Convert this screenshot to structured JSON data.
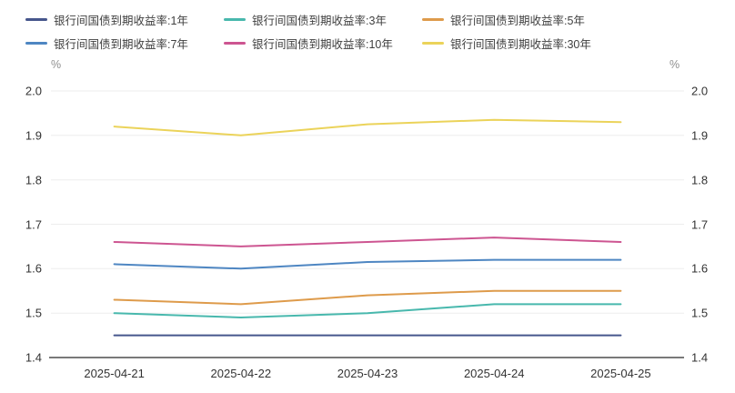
{
  "chart_data": {
    "type": "line",
    "title": "",
    "x": [
      "2025-04-21",
      "2025-04-22",
      "2025-04-23",
      "2025-04-24",
      "2025-04-25"
    ],
    "series": [
      {
        "name": "银行间国债到期收益率:1年",
        "color": "#46568c",
        "values": [
          1.45,
          1.45,
          1.45,
          1.45,
          1.45
        ]
      },
      {
        "name": "银行间国债到期收益率:3年",
        "color": "#48b8ad",
        "values": [
          1.5,
          1.49,
          1.5,
          1.52,
          1.52
        ]
      },
      {
        "name": "银行间国债到期收益率:5年",
        "color": "#de9b4b",
        "values": [
          1.53,
          1.52,
          1.54,
          1.55,
          1.55
        ]
      },
      {
        "name": "银行间国债到期收益率:7年",
        "color": "#4e86c2",
        "values": [
          1.61,
          1.6,
          1.615,
          1.62,
          1.62
        ]
      },
      {
        "name": "银行间国债到期收益率:10年",
        "color": "#cd5591",
        "values": [
          1.66,
          1.65,
          1.66,
          1.67,
          1.66
        ]
      },
      {
        "name": "银行间国债到期收益率:30年",
        "color": "#ebd35a",
        "values": [
          1.92,
          1.9,
          1.925,
          1.935,
          1.93
        ]
      }
    ],
    "y_axis": {
      "unit": "%",
      "min": 1.4,
      "max": 2.0,
      "ticks": [
        "1.4",
        "1.5",
        "1.6",
        "1.7",
        "1.8",
        "1.9",
        "2.0"
      ]
    },
    "legend_position": "top-left",
    "grid": true,
    "colors": {
      "grid_line": "#ededed",
      "axis_line": "#4d4d4d",
      "tick_text": "#333333",
      "unit_text": "#8f8f8f",
      "legend_text": "#404040",
      "background": "#ffffff"
    }
  }
}
